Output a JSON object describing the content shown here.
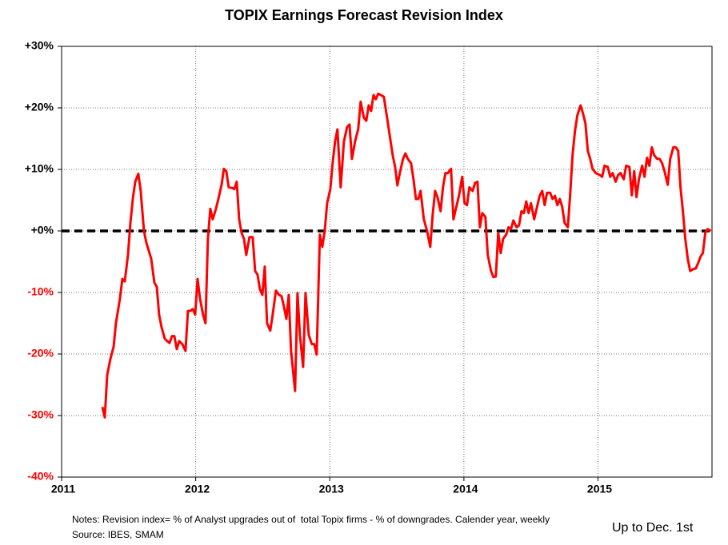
{
  "chart_data": {
    "type": "line",
    "title": "TOPIX Earnings Forecast Revision Index",
    "notes": "Notes: Revision index= % of Analyst upgrades out of  total Topix firms - % of downgrades. Calender year, weekly",
    "source": "Source: IBES, SMAM",
    "annotation": "Up to Dec. 1st",
    "x": [
      2011.304,
      2011.322,
      2011.34,
      2011.364,
      2011.388,
      2011.405,
      2011.435,
      2011.453,
      2011.471,
      2011.495,
      2011.513,
      2011.531,
      2011.549,
      2011.572,
      2011.59,
      2011.614,
      2011.632,
      2011.65,
      2011.668,
      2011.692,
      2011.71,
      2011.727,
      2011.745,
      2011.769,
      2011.787,
      2011.805,
      2011.823,
      2011.841,
      2011.859,
      2011.877,
      2011.9,
      2011.924,
      2011.942,
      2011.96,
      2011.978,
      2011.996,
      2012.014,
      2012.032,
      2012.055,
      2012.073,
      2012.091,
      2012.109,
      2012.127,
      2012.151,
      2012.169,
      2012.193,
      2012.21,
      2012.228,
      2012.246,
      2012.27,
      2012.288,
      2012.306,
      2012.324,
      2012.342,
      2012.36,
      2012.377,
      2012.401,
      2012.425,
      2012.443,
      2012.461,
      2012.479,
      2012.497,
      2012.515,
      2012.532,
      2012.556,
      2012.574,
      2012.598,
      2012.622,
      2012.64,
      2012.658,
      2012.676,
      2012.694,
      2012.711,
      2012.741,
      2012.759,
      2012.777,
      2012.801,
      2012.819,
      2012.843,
      2012.866,
      2012.884,
      2012.902,
      2012.926,
      2012.944,
      2012.962,
      2012.98,
      2013.004,
      2013.021,
      2013.039,
      2013.057,
      2013.081,
      2013.105,
      2013.129,
      2013.147,
      2013.165,
      2013.188,
      2013.212,
      2013.23,
      2013.254,
      2013.272,
      2013.29,
      2013.308,
      2013.326,
      2013.343,
      2013.361,
      2013.379,
      2013.403,
      2013.427,
      2013.451,
      2013.469,
      2013.487,
      2013.504,
      2013.522,
      2013.546,
      2013.564,
      2013.582,
      2013.606,
      2013.624,
      2013.642,
      2013.66,
      2013.677,
      2013.701,
      2013.725,
      2013.749,
      2013.767,
      2013.785,
      2013.803,
      2013.826,
      2013.844,
      2013.862,
      2013.88,
      2013.904,
      2013.922,
      2013.94,
      2013.964,
      2013.987,
      2014.005,
      2014.023,
      2014.041,
      2014.065,
      2014.083,
      2014.101,
      2014.119,
      2014.137,
      2014.16,
      2014.178,
      2014.202,
      2014.22,
      2014.238,
      2014.256,
      2014.274,
      2014.292,
      2014.315,
      2014.333,
      2014.351,
      2014.369,
      2014.393,
      2014.411,
      2014.429,
      2014.447,
      2014.465,
      2014.482,
      2014.5,
      2014.524,
      2014.542,
      2014.566,
      2014.584,
      2014.602,
      2014.62,
      2014.643,
      2014.661,
      2014.679,
      2014.697,
      2014.715,
      2014.733,
      2014.751,
      2014.775,
      2014.792,
      2014.81,
      2014.828,
      2014.846,
      2014.87,
      2014.888,
      2014.906,
      2014.924,
      2014.942,
      2014.959,
      2014.983,
      2015.013,
      2015.031,
      2015.049,
      2015.073,
      2015.091,
      2015.109,
      2015.132,
      2015.15,
      2015.168,
      2015.192,
      2015.21,
      2015.234,
      2015.252,
      2015.27,
      2015.287,
      2015.305,
      2015.329,
      2015.347,
      2015.365,
      2015.383,
      2015.401,
      2015.419,
      2015.442,
      2015.46,
      2015.478,
      2015.496,
      2015.52,
      2015.538,
      2015.562,
      2015.58,
      2015.598,
      2015.615,
      2015.633,
      2015.651,
      2015.669,
      2015.687,
      2015.711,
      2015.729,
      2015.747,
      2015.764,
      2015.782,
      2015.8,
      2015.818,
      2015.842
    ],
    "series": [
      {
        "color": "#ff0000",
        "values": [
          -28.6,
          -30.3,
          -23.4,
          -20.8,
          -18.8,
          -15,
          -11,
          -7.8,
          -8.2,
          -3.9,
          1.3,
          5.2,
          8,
          9.3,
          6.5,
          0,
          -1.9,
          -3.2,
          -4.5,
          -8.4,
          -9.1,
          -13.6,
          -15.6,
          -17.5,
          -17.9,
          -18.2,
          -17.1,
          -17.1,
          -19.2,
          -17.9,
          -18.4,
          -19.5,
          -13,
          -13,
          -12.7,
          -13.6,
          -7.8,
          -11,
          -13.6,
          -15,
          -1.3,
          3.6,
          1.9,
          3.6,
          5.2,
          7.5,
          10.1,
          9.7,
          7.1,
          7,
          6.8,
          8,
          1.9,
          -0.3,
          -1.3,
          -3.9,
          -1,
          -1,
          -6.5,
          -7.1,
          -9.5,
          -10.4,
          -5.8,
          -15,
          -16.2,
          -13.6,
          -9.7,
          -10.4,
          -10.6,
          -12.3,
          -14.3,
          -10.4,
          -19.5,
          -26,
          -10.1,
          -16.9,
          -22.1,
          -10.1,
          -16.9,
          -18.4,
          -18.4,
          -20.1,
          -0.6,
          -2.6,
          0,
          4.5,
          6.8,
          11,
          14.5,
          16.5,
          7.1,
          14.5,
          16.9,
          17.3,
          11.7,
          14.5,
          16.6,
          21,
          18.4,
          17.9,
          20.4,
          19.5,
          22.1,
          21.4,
          22.3,
          22.1,
          21.8,
          18.4,
          14.9,
          12.3,
          10.4,
          7.4,
          9.4,
          11.7,
          12.6,
          11.7,
          11,
          8.4,
          5.2,
          5.2,
          6.5,
          1.9,
          0,
          -2.6,
          2.6,
          6.5,
          5.5,
          3.2,
          7.1,
          9.4,
          9.4,
          10.1,
          1.9,
          3.6,
          5.8,
          8.8,
          4.5,
          4.2,
          7.1,
          6.5,
          7.8,
          8,
          0.6,
          2.9,
          2.3,
          -3.9,
          -6.5,
          -7.5,
          -7.4,
          -0.3,
          -3.6,
          -1.3,
          -0.6,
          0.6,
          0.3,
          1.7,
          0.6,
          0.9,
          3.2,
          2.9,
          4.8,
          2.9,
          4.5,
          1.9,
          3.6,
          5.8,
          6.5,
          4.2,
          6.2,
          6.2,
          5.2,
          5.7,
          4.2,
          5.2,
          3.9,
          1.3,
          0.6,
          5.8,
          12.3,
          16.2,
          18.8,
          20.4,
          19.1,
          17.5,
          13,
          11.7,
          10.1,
          9.4,
          9.1,
          8.8,
          10.6,
          10.4,
          8.8,
          9.4,
          8,
          9.1,
          9.4,
          8.4,
          10.6,
          10.4,
          5.8,
          9.7,
          5.5,
          8.4,
          10.6,
          8.8,
          11.9,
          10.6,
          13.6,
          12.3,
          11.7,
          11.7,
          11,
          9.7,
          7.5,
          11.7,
          13.6,
          13.6,
          13,
          7.1,
          3.2,
          -1.3,
          -4.5,
          -6.5,
          -6.2,
          -6.1,
          -5.2,
          -4.2,
          -3.6,
          -0.3,
          0.3,
          0
        ]
      }
    ],
    "hline": 0,
    "xlim": [
      2011,
      2015.85
    ],
    "xticks": [
      2011,
      2012,
      2013,
      2014,
      2015
    ],
    "ylim": [
      -40,
      30
    ],
    "yticks": [
      {
        "value": -40,
        "label": "-40%"
      },
      {
        "value": -30,
        "label": "-30%"
      },
      {
        "value": -20,
        "label": "-20%"
      },
      {
        "value": -10,
        "label": "-10%"
      },
      {
        "value": 0,
        "label": "+0%"
      },
      {
        "value": 10,
        "label": "+10%"
      },
      {
        "value": 20,
        "label": "+20%"
      },
      {
        "value": 30,
        "label": "+30%"
      }
    ],
    "grid": true
  }
}
